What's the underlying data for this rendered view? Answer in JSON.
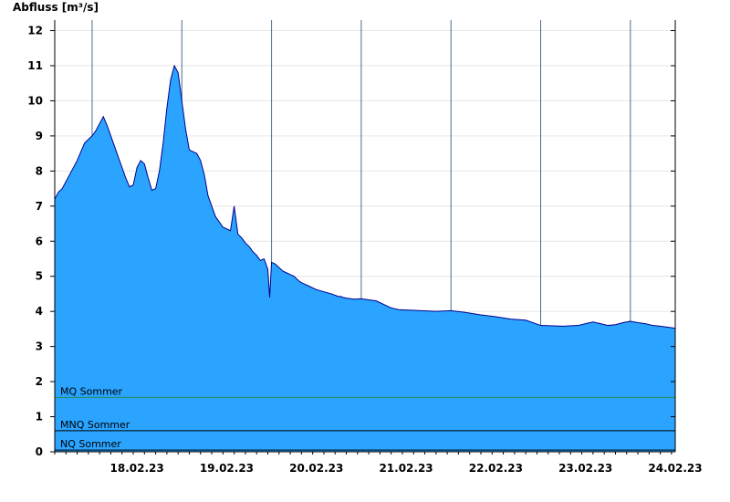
{
  "chart_data": {
    "type": "area",
    "title": "Abfluss [m³/s]",
    "ylim": [
      0,
      12.3
    ],
    "yticks": [
      0,
      1,
      2,
      3,
      4,
      5,
      6,
      7,
      8,
      9,
      10,
      11,
      12
    ],
    "ytick_labels": [
      "0",
      "1",
      "2",
      "3",
      "4",
      "5",
      "6",
      "7",
      "8",
      "9",
      "10",
      "11",
      "12"
    ],
    "x_start": "17.02.23 14:00",
    "x_end": "24.02.23 12:00",
    "xtick_labels": [
      "18.02.23",
      "19.02.23",
      "20.02.23",
      "21.02.23",
      "22.02.23",
      "23.02.23",
      "24.02.23"
    ],
    "day_boundaries": [
      "18.02.23 00:00",
      "19.02.23 00:00",
      "20.02.23 00:00",
      "21.02.23 00:00",
      "22.02.23 00:00",
      "23.02.23 00:00",
      "24.02.23 00:00"
    ],
    "grid": true,
    "colors": {
      "fill": "#2aa4ff",
      "line": "#00008b",
      "mq": "#2e8b57",
      "mnq": "#000000",
      "nq": "#000000"
    },
    "series": [
      {
        "x": [
          "17.02.23 14:00",
          "17.02.23 15:00",
          "17.02.23 16:00",
          "17.02.23 17:00",
          "17.02.23 18:00",
          "17.02.23 20:00",
          "17.02.23 22:00",
          "17.02.23 23:00",
          "18.02.23 00:00",
          "18.02.23 01:00",
          "18.02.23 02:00",
          "18.02.23 03:00",
          "18.02.23 04:00",
          "18.02.23 05:00",
          "18.02.23 06:00",
          "18.02.23 07:00",
          "18.02.23 08:00",
          "18.02.23 09:00",
          "18.02.23 10:00",
          "18.02.23 11:00",
          "18.02.23 12:00",
          "18.02.23 13:00",
          "18.02.23 14:00",
          "18.02.23 15:00",
          "18.02.23 16:00",
          "18.02.23 17:00",
          "18.02.23 18:00",
          "18.02.23 19:00",
          "18.02.23 20:00",
          "18.02.23 21:00",
          "18.02.23 22:00",
          "18.02.23 23:00",
          "19.02.23 00:00",
          "19.02.23 01:00",
          "19.02.23 02:00",
          "19.02.23 03:00",
          "19.02.23 04:00",
          "19.02.23 05:00",
          "19.02.23 06:00",
          "19.02.23 07:00",
          "19.02.23 09:00",
          "19.02.23 11:00",
          "19.02.23 13:00",
          "19.02.23 14:00",
          "19.02.23 15:00",
          "19.02.23 16:00",
          "19.02.23 17:00",
          "19.02.23 18:00",
          "19.02.23 19:00",
          "19.02.23 20:00",
          "19.02.23 21:00",
          "19.02.23 22:00",
          "19.02.23 23:00",
          "19.02.23 23:30",
          "20.02.23 00:00",
          "20.02.23 01:00",
          "20.02.23 02:00",
          "20.02.23 03:00",
          "20.02.23 04:00",
          "20.02.23 05:00",
          "20.02.23 06:00",
          "20.02.23 06:30",
          "20.02.23 07:00",
          "20.02.23 07:30",
          "20.02.23 08:00",
          "20.02.23 10:00",
          "20.02.23 12:00",
          "20.02.23 16:00",
          "20.02.23 17:30",
          "20.02.23 18:00",
          "20.02.23 18:30",
          "20.02.23 19:00",
          "20.02.23 20:00",
          "20.02.23 22:00",
          "21.02.23 00:00",
          "21.02.23 04:00",
          "21.02.23 07:00",
          "21.02.23 08:00",
          "21.02.23 10:00",
          "21.02.23 14:00",
          "21.02.23 20:00",
          "22.02.23 00:00",
          "22.02.23 04:00",
          "22.02.23 08:00",
          "22.02.23 12:00",
          "22.02.23 16:00",
          "22.02.23 20:00",
          "23.02.23 00:00",
          "23.02.23 06:00",
          "23.02.23 10:00",
          "23.02.23 12:00",
          "23.02.23 14:00",
          "23.02.23 16:00",
          "23.02.23 18:00",
          "23.02.23 20:00",
          "23.02.23 22:00",
          "24.02.23 00:00",
          "24.02.23 02:00",
          "24.02.23 04:00",
          "24.02.23 06:00",
          "24.02.23 08:00",
          "24.02.23 10:00",
          "24.02.23 12:00"
        ],
        "y": [
          7.2,
          7.4,
          7.5,
          7.7,
          7.9,
          8.3,
          8.8,
          8.9,
          9.0,
          9.15,
          9.35,
          9.55,
          9.3,
          9.0,
          8.7,
          8.4,
          8.1,
          7.8,
          7.55,
          7.6,
          8.1,
          8.3,
          8.2,
          7.8,
          7.45,
          7.5,
          8.0,
          8.8,
          9.8,
          10.6,
          11.0,
          10.8,
          10.0,
          9.2,
          8.6,
          8.55,
          8.5,
          8.3,
          7.9,
          7.3,
          6.7,
          6.4,
          6.3,
          7.0,
          6.2,
          6.1,
          5.95,
          5.85,
          5.7,
          5.6,
          5.45,
          5.5,
          5.2,
          4.4,
          5.4,
          5.35,
          5.25,
          5.15,
          5.1,
          5.05,
          5.0,
          4.95,
          4.9,
          4.85,
          4.82,
          4.72,
          4.62,
          4.5,
          4.44,
          4.42,
          4.43,
          4.4,
          4.38,
          4.35,
          4.36,
          4.3,
          4.15,
          4.1,
          4.05,
          4.03,
          4.0,
          4.02,
          3.97,
          3.9,
          3.85,
          3.78,
          3.75,
          3.6,
          3.58,
          3.6,
          3.65,
          3.7,
          3.65,
          3.6,
          3.62,
          3.68,
          3.72,
          3.68,
          3.65,
          3.6,
          3.58,
          3.55,
          3.52
        ]
      }
    ],
    "reference_lines": [
      {
        "label": "MQ Sommer",
        "value": 1.55,
        "color": "#2e8b57"
      },
      {
        "label": "MNQ Sommer",
        "value": 0.6,
        "color": "#000000"
      },
      {
        "label": "NQ Sommer",
        "value": 0.05,
        "color": "#000000"
      }
    ]
  }
}
